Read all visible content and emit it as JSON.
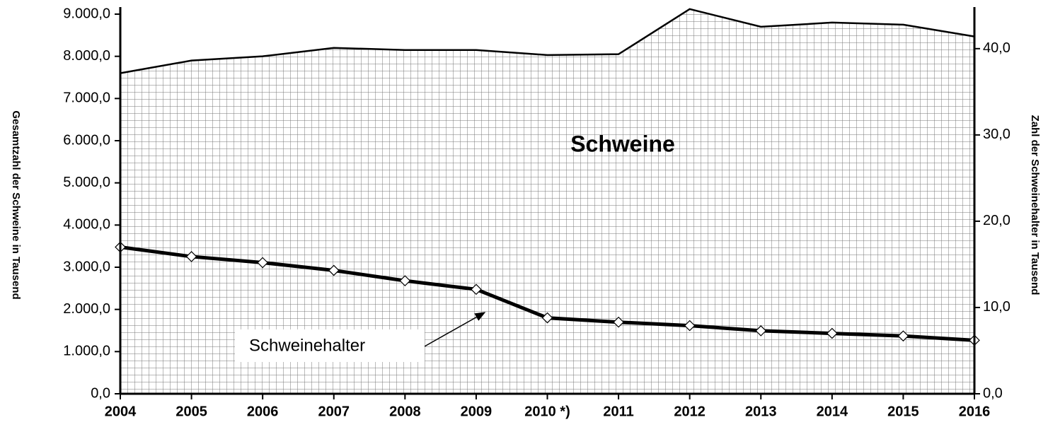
{
  "chart_data": {
    "type": "area_line",
    "categories": [
      "2004",
      "2005",
      "2006",
      "2007",
      "2008",
      "2009",
      "2010 *)",
      "2011",
      "2012",
      "2013",
      "2014",
      "2015",
      "2016"
    ],
    "series": [
      {
        "name": "Schweine",
        "color": "#000000",
        "values": [
          7600,
          7900,
          8000,
          8200,
          8150,
          8150,
          8030,
          8050,
          9120,
          8700,
          8800,
          8750,
          8470
        ]
      },
      {
        "name": "Schweinehalter",
        "color": "#000000",
        "axis": "y2",
        "values": [
          17.0,
          15.9,
          15.2,
          14.3,
          13.1,
          12.1,
          8.8,
          8.3,
          7.9,
          7.3,
          7.0,
          6.7,
          6.2
        ]
      }
    ],
    "ylabel": "Gesamtzahl der Schweine in Tausend",
    "y2label": "Zahl der Schweinehalter  in Tausend",
    "ylim": [
      0,
      9000
    ],
    "yticks": [
      {
        "value": 0,
        "label": "0,0"
      },
      {
        "value": 1000,
        "label": "1.000,0"
      },
      {
        "value": 2000,
        "label": "2.000,0"
      },
      {
        "value": 3000,
        "label": "3.000,0"
      },
      {
        "value": 4000,
        "label": "4.000,0"
      },
      {
        "value": 5000,
        "label": "5.000,0"
      },
      {
        "value": 6000,
        "label": "6.000,0"
      },
      {
        "value": 7000,
        "label": "7.000,0"
      },
      {
        "value": 8000,
        "label": "8.000,0"
      },
      {
        "value": 9000,
        "label": "9.000,0"
      }
    ],
    "y2lim": [
      0,
      44
    ],
    "y2ticks": [
      {
        "value": 0,
        "label": "0,0"
      },
      {
        "value": 10,
        "label": "10,0"
      },
      {
        "value": 20,
        "label": "20,0"
      },
      {
        "value": 30,
        "label": "30,0"
      },
      {
        "value": 40,
        "label": "40,0"
      }
    ]
  }
}
